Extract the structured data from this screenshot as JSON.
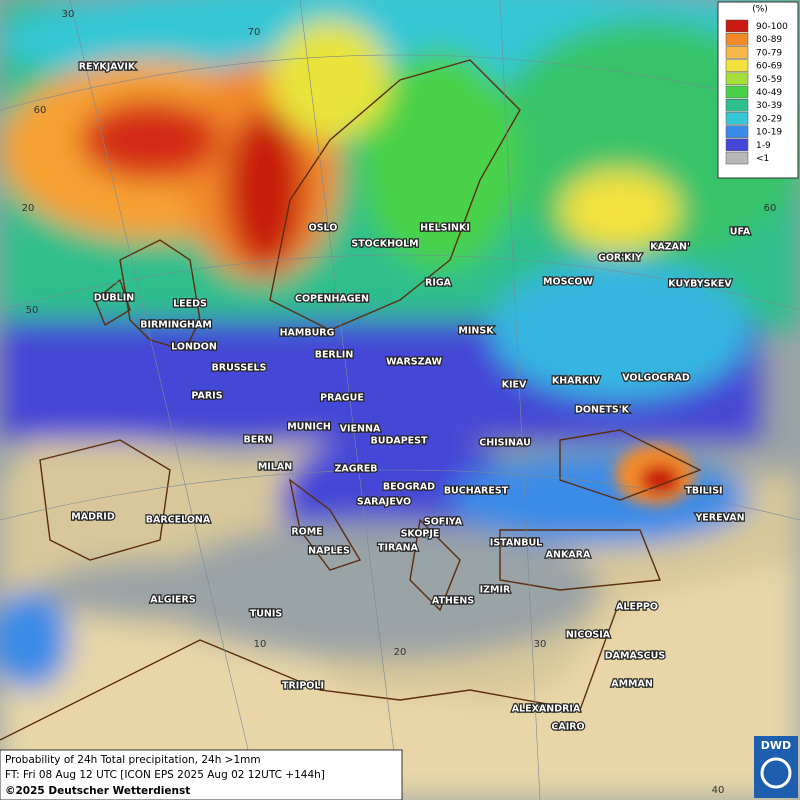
{
  "legend": {
    "title": "(%)",
    "items": [
      {
        "label": "90-100",
        "color": "#c81a10"
      },
      {
        "label": "80-89",
        "color": "#f28a2a"
      },
      {
        "label": "70-79",
        "color": "#f6b84a"
      },
      {
        "label": "60-69",
        "color": "#f3e23d"
      },
      {
        "label": "50-59",
        "color": "#a5e03a"
      },
      {
        "label": "40-49",
        "color": "#48d14a"
      },
      {
        "label": "30-39",
        "color": "#2fbf8c"
      },
      {
        "label": "20-29",
        "color": "#35c7d6"
      },
      {
        "label": "10-19",
        "color": "#3a8be8"
      },
      {
        "label": "1-9",
        "color": "#4446d6"
      },
      {
        "label": "<1",
        "color": "#b8b8b8"
      }
    ]
  },
  "grid_labels": [
    "30",
    "70",
    "60",
    "20",
    "50",
    "10",
    "20",
    "30",
    "40",
    "60"
  ],
  "cities": [
    "REYKJAVIK",
    "OSLO",
    "STOCKHOLM",
    "HELSINKI",
    "DUBLIN",
    "LEEDS",
    "COPENHAGEN",
    "RIGA",
    "MOSCOW",
    "GOR'KIY",
    "KAZAN'",
    "UFA",
    "KUYBYSKEV",
    "BIRMINGHAM",
    "HAMBURG",
    "MINSK",
    "LONDON",
    "BERLIN",
    "WARSZAW",
    "KHARKIV",
    "VOLGOGRAD",
    "BRUSSELS",
    "KIEV",
    "PARIS",
    "PRAGUE",
    "DONETS'K",
    "MUNICH",
    "VIENNA",
    "BERN",
    "BUDAPEST",
    "CHISINAU",
    "MILAN",
    "ZAGREB",
    "TBILISI",
    "BEOGRAD",
    "BUCHAREST",
    "MADRID",
    "BARCELONA",
    "SARAJEVO",
    "SOFIYA",
    "YEREVAN",
    "ROME",
    "SKOPJE",
    "ISTANBUL",
    "ANKARA",
    "NAPLES",
    "TIRANA",
    "ALGIERS",
    "ATHENS",
    "IZMIR",
    "ALEPPO",
    "TUNIS",
    "NICOSIA",
    "DAMASCUS",
    "TRIPOLI",
    "AMMAN",
    "ALEXANDRIA",
    "CAIRO"
  ],
  "footer": {
    "line1": "Probability of 24h Total precipitation, 24h >1mm",
    "line2": "FT: Fri 08 Aug 12 UTC [ICON EPS 2025 Aug 02 12UTC +144h]",
    "copyright": "©2025 Deutscher Wetterdienst"
  },
  "logo": "DWD"
}
